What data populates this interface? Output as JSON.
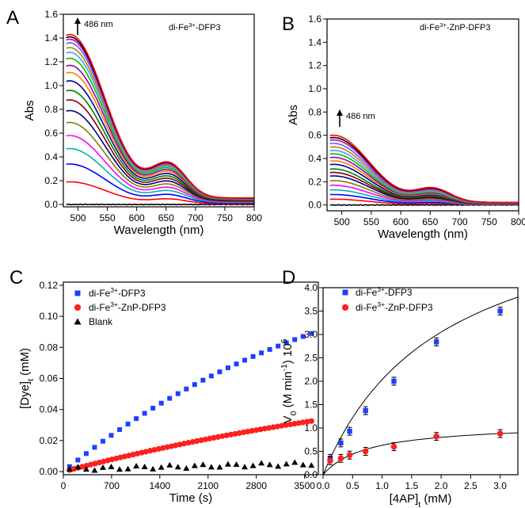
{
  "chart_data": [
    {
      "panel": "A",
      "type": "line",
      "title_main": "di-Fe",
      "title_sup": "3+",
      "title_rest": "-DFP3",
      "xlabel": "Wavelength (nm)",
      "ylabel": "Abs",
      "xlim": [
        475,
        800
      ],
      "ylim": [
        -0.02,
        1.6
      ],
      "xticks": [
        "500",
        "550",
        "600",
        "650",
        "700",
        "750",
        "800"
      ],
      "yticks": [
        "0.0",
        "0.2",
        "0.4",
        "0.6",
        "0.8",
        "1.0",
        "1.2",
        "1.4",
        "1.6"
      ],
      "annotation": "486 nm",
      "peaks": [
        0.0,
        0.19,
        0.34,
        0.47,
        0.58,
        0.69,
        0.79,
        0.88,
        0.96,
        1.04,
        1.11,
        1.17,
        1.23,
        1.28,
        1.32,
        1.36,
        1.39,
        1.41,
        1.43
      ],
      "colors": [
        "#000000",
        "#ff0000",
        "#0000ff",
        "#00b4b4",
        "#ff00ff",
        "#808000",
        "#000080",
        "#800000",
        "#008000",
        "#0000a0",
        "#ff8000",
        "#a000a0",
        "#00c000",
        "#40a0ff",
        "#c08000",
        "#6060ff",
        "#c000c0",
        "#000000",
        "#ff0000"
      ]
    },
    {
      "panel": "B",
      "type": "line",
      "title_main": "di-Fe",
      "title_sup": "3+",
      "title_rest": "-ZnP-DFP3",
      "xlabel": "Wavelength (nm)",
      "ylabel": "Abs",
      "xlim": [
        475,
        800
      ],
      "ylim": [
        -0.05,
        1.6
      ],
      "xticks": [
        "500",
        "550",
        "600",
        "650",
        "700",
        "750",
        "800"
      ],
      "yticks": [
        "0.0",
        "0.2",
        "0.4",
        "0.6",
        "0.8",
        "1.0",
        "1.2",
        "1.4",
        "1.6"
      ],
      "annotation": "486 nm",
      "peaks": [
        0.0,
        0.05,
        0.09,
        0.13,
        0.17,
        0.21,
        0.25,
        0.28,
        0.31,
        0.35,
        0.38,
        0.41,
        0.44,
        0.47,
        0.5,
        0.53,
        0.56,
        0.58,
        0.6
      ],
      "colors": [
        "#000000",
        "#ff0000",
        "#0000ff",
        "#00b4b4",
        "#ff00ff",
        "#808000",
        "#000080",
        "#800000",
        "#008000",
        "#0000a0",
        "#ff8000",
        "#a000a0",
        "#00c000",
        "#40a0ff",
        "#c08000",
        "#6060ff",
        "#c000c0",
        "#000000",
        "#ff0000"
      ]
    },
    {
      "panel": "C",
      "type": "scatter",
      "xlabel": "Time (s)",
      "ylabel_main": "[Dye]",
      "ylabel_sub": "t",
      "ylabel_rest": " (mM)",
      "xlim": [
        0,
        3700
      ],
      "ylim": [
        -0.002,
        0.122
      ],
      "xticks": [
        "0",
        "700",
        "1400",
        "2100",
        "2800",
        "3500"
      ],
      "xtick_values": [
        0,
        700,
        1400,
        2100,
        2800,
        3500
      ],
      "yticks": [
        "0.00",
        "0.02",
        "0.04",
        "0.06",
        "0.08",
        "0.10",
        "0.12"
      ],
      "series": [
        {
          "legend_main": "di-Fe",
          "legend_sup": "3+",
          "legend_rest": "-DFP3",
          "color": "#1f3fff",
          "marker": "square",
          "amplitude": 0.2,
          "rate": 0.00023,
          "n": 30
        },
        {
          "legend_main": "di-Fe",
          "legend_sup": "3+",
          "legend_rest": "-ZnP-DFP3",
          "color": "#ff1f1f",
          "marker": "circle",
          "amplitude": 0.12,
          "rate": 0.00015,
          "n": 58
        },
        {
          "legend_main": "Blank",
          "legend_sup": "",
          "legend_rest": "",
          "color": "#000000",
          "marker": "triangle",
          "amplitude": 0.005,
          "rate": 0.001,
          "n": 30
        }
      ]
    },
    {
      "panel": "D",
      "type": "scatter",
      "xlabel_main": "[4AP]",
      "xlabel_sub": "t",
      "xlabel_rest": " (mM)",
      "ylabel_main": "V",
      "ylabel_sub": "0",
      "ylabel_rest1": " (M min",
      "ylabel_sup1": "-1",
      "ylabel_rest2": ") 10",
      "ylabel_sup2": "6",
      "xlim": [
        0,
        3.3
      ],
      "ylim": [
        0,
        4.0
      ],
      "xticks": [
        "0.0",
        "0.5",
        "1.0",
        "1.5",
        "2.0",
        "2.5",
        "3.0"
      ],
      "yticks": [
        "0.0",
        "0.5",
        "1.0",
        "1.5",
        "2.0",
        "2.5",
        "3.0",
        "3.5",
        "4.0"
      ],
      "series": [
        {
          "legend_main": "di-Fe",
          "legend_sup": "3+",
          "legend_rest": "-DFP3",
          "color": "#1f3fff",
          "marker": "square",
          "x": [
            0.12,
            0.3,
            0.45,
            0.72,
            1.2,
            1.92,
            3.0
          ],
          "y": [
            0.35,
            0.68,
            0.93,
            1.37,
            2.0,
            2.84,
            3.5
          ],
          "vmax": 6.1,
          "km": 2.0
        },
        {
          "legend_main": "di-Fe",
          "legend_sup": "3+",
          "legend_rest": "-ZnP-DFP3",
          "color": "#ff1f1f",
          "marker": "circle",
          "x": [
            0.12,
            0.3,
            0.45,
            0.72,
            1.2,
            1.92,
            3.0
          ],
          "y": [
            0.3,
            0.35,
            0.42,
            0.5,
            0.6,
            0.82,
            0.88
          ],
          "vmax": 1.1,
          "km": 0.75
        }
      ]
    }
  ]
}
